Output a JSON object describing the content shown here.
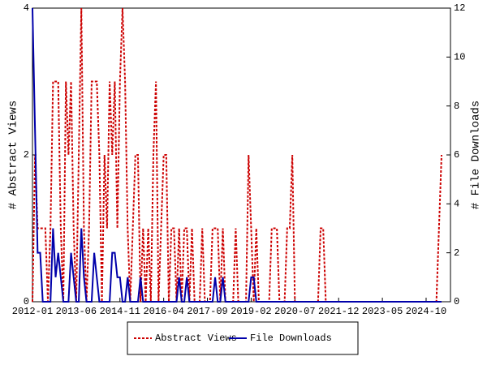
{
  "chart_data": {
    "type": "line",
    "categories": [
      "2012-01",
      null,
      null,
      null,
      null,
      null,
      null,
      null,
      null,
      null,
      null,
      null,
      null,
      null,
      null,
      null,
      null,
      "2013-06",
      null,
      null,
      null,
      null,
      null,
      null,
      null,
      null,
      null,
      null,
      null,
      null,
      null,
      null,
      null,
      null,
      "2014-11",
      null,
      null,
      null,
      null,
      null,
      null,
      null,
      null,
      null,
      null,
      null,
      null,
      null,
      null,
      null,
      null,
      "2016-04",
      null,
      null,
      null,
      null,
      null,
      null,
      null,
      null,
      null,
      null,
      null,
      null,
      null,
      null,
      null,
      null,
      "2017-09",
      null,
      null,
      null,
      null,
      null,
      null,
      null,
      null,
      null,
      null,
      null,
      null,
      null,
      null,
      null,
      null,
      "2019-02",
      null,
      null,
      null,
      null,
      null,
      null,
      null,
      null,
      null,
      null,
      null,
      null,
      null,
      null,
      null,
      null,
      "2020-07",
      null,
      null,
      null,
      null,
      null,
      null,
      null,
      null,
      null,
      null,
      null,
      null,
      null,
      null,
      null,
      null,
      "2021-12",
      null,
      null,
      null,
      null,
      null,
      null,
      null,
      null,
      null,
      null,
      null,
      null,
      null,
      null,
      null,
      null,
      "2023-05",
      null,
      null,
      null,
      null,
      null,
      null,
      null,
      null,
      null,
      null,
      null,
      null,
      null,
      null,
      null,
      null,
      "2024-10",
      null,
      null,
      null,
      null,
      null,
      null
    ],
    "series": [
      {
        "name": "Abstract Views",
        "color": "#cc0000",
        "axis": "y",
        "dashed": true,
        "values": [
          0,
          2,
          1,
          1,
          1,
          1,
          0,
          1,
          3,
          3,
          3,
          1,
          0,
          3,
          2,
          3,
          1,
          0,
          2,
          4,
          1,
          0,
          1,
          3,
          3,
          3,
          2,
          0,
          2,
          1,
          3,
          2,
          3,
          1,
          3,
          4,
          3,
          1,
          0,
          1,
          2,
          2,
          0,
          1,
          0,
          1,
          0,
          2,
          3,
          0,
          1,
          2,
          2,
          0,
          1,
          1,
          0,
          1,
          0,
          1,
          1,
          0,
          1,
          0,
          0,
          0,
          1,
          0,
          0,
          0,
          1,
          1,
          1,
          0,
          1,
          0,
          0,
          0,
          0,
          1,
          0,
          0,
          0,
          0,
          2,
          1,
          0,
          1,
          0,
          0,
          0,
          0,
          0,
          1,
          1,
          1,
          0,
          0,
          0,
          1,
          1,
          2,
          0,
          0,
          0,
          0,
          0,
          0,
          0,
          0,
          0,
          0,
          1,
          1,
          0,
          0,
          0,
          0,
          0,
          0,
          0,
          0,
          0,
          0,
          0,
          0,
          0,
          0,
          0,
          0,
          0,
          0,
          0,
          0,
          0,
          0,
          0,
          0,
          0,
          0,
          0,
          0,
          0,
          0,
          0,
          0,
          0,
          0,
          0,
          0,
          0,
          0,
          0,
          0,
          0,
          0,
          0,
          0,
          1,
          2
        ]
      },
      {
        "name": "File Downloads",
        "color": "#0000aa",
        "axis": "y2",
        "dashed": false,
        "values": [
          12,
          7,
          2,
          2,
          0,
          0,
          0,
          0,
          3,
          1,
          2,
          1,
          0,
          0,
          0,
          2,
          1,
          0,
          0,
          3,
          1,
          0,
          0,
          0,
          2,
          1,
          0,
          0,
          0,
          0,
          0,
          2,
          2,
          1,
          1,
          0,
          0,
          1,
          0,
          0,
          0,
          0,
          1,
          0,
          0,
          0,
          0,
          0,
          0,
          0,
          0,
          0,
          0,
          0,
          0,
          0,
          0,
          1,
          0,
          0,
          1,
          0,
          0,
          0,
          0,
          0,
          0,
          0,
          0,
          0,
          0,
          1,
          0,
          0,
          1,
          0,
          0,
          0,
          0,
          0,
          0,
          0,
          0,
          0,
          0,
          1,
          1,
          0,
          0,
          0,
          0,
          0,
          0,
          0,
          0,
          0,
          0,
          0,
          0,
          0,
          0,
          0,
          0,
          0,
          0,
          0,
          0,
          0,
          0,
          0,
          0,
          0,
          0,
          0,
          0,
          0,
          0,
          0,
          0,
          0,
          0,
          0,
          0,
          0,
          0,
          0,
          0,
          0,
          0,
          0,
          0,
          0,
          0,
          0,
          0,
          0,
          0,
          0,
          0,
          0,
          0,
          0,
          0,
          0,
          0,
          0,
          0,
          0,
          0,
          0,
          0,
          0,
          0,
          0,
          0,
          0,
          0,
          0,
          0,
          0
        ]
      }
    ],
    "ylabel": "# Abstract Views",
    "y2label": "# File Downloads",
    "ylim": [
      0,
      4
    ],
    "yticks": [
      0,
      2,
      4
    ],
    "y2lim": [
      0,
      12
    ],
    "y2ticks": [
      0,
      2,
      4,
      6,
      8,
      10,
      12
    ],
    "legend": "bottom",
    "grid": false
  }
}
